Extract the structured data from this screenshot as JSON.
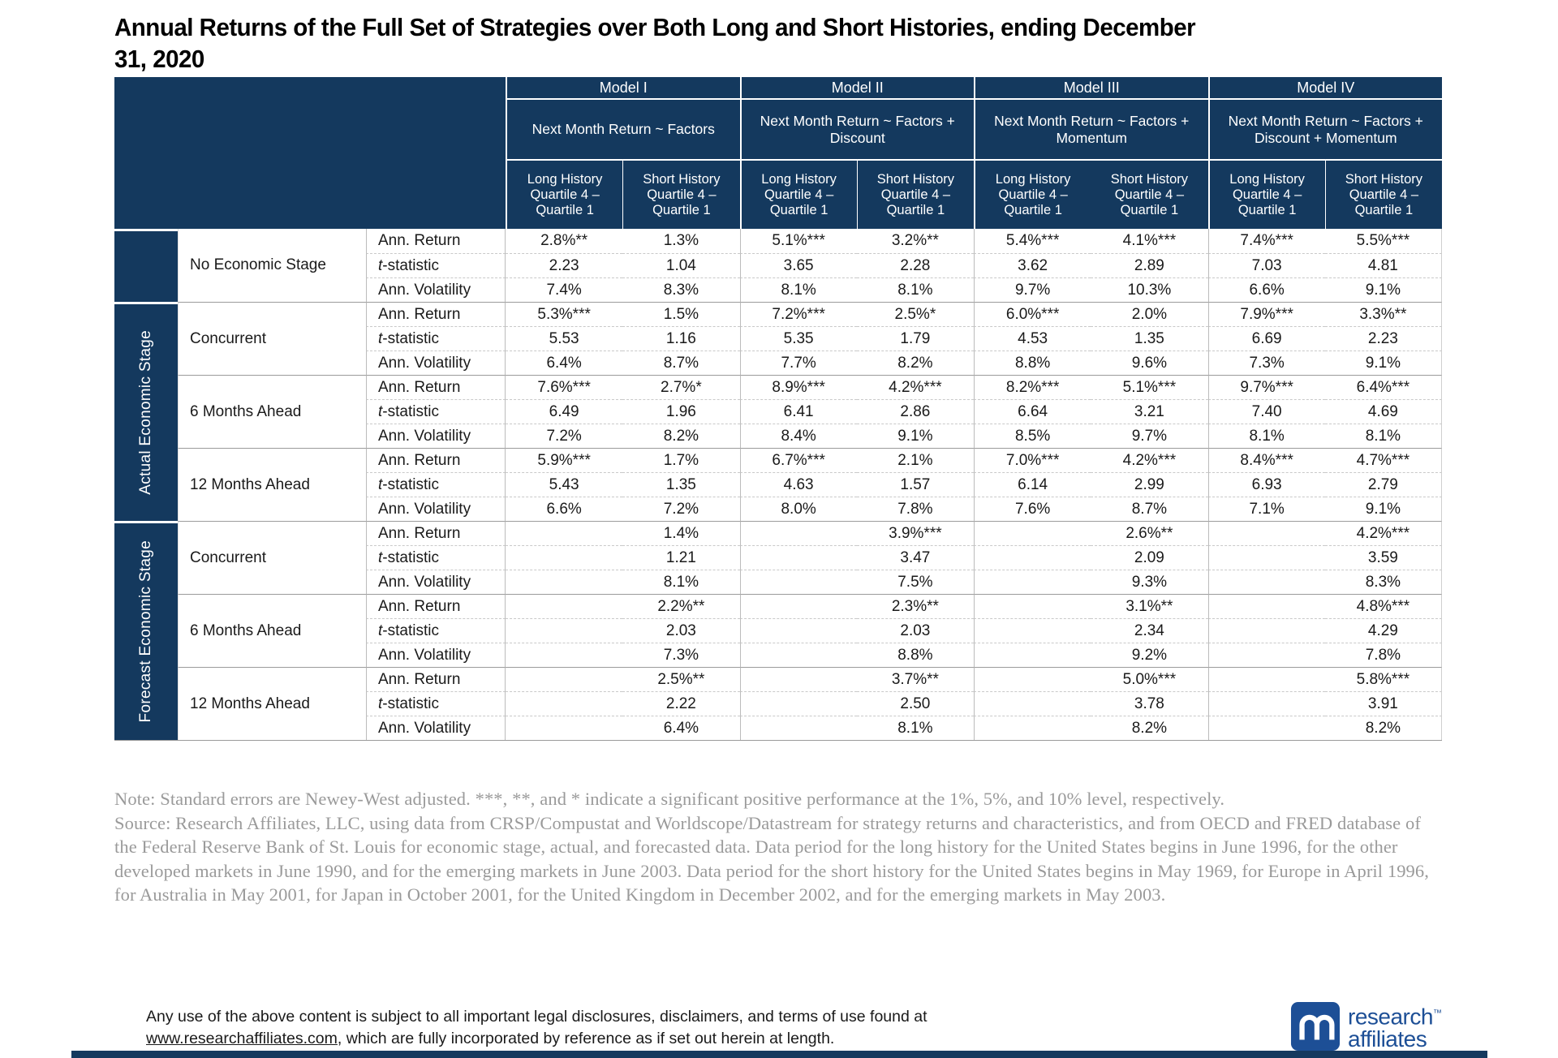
{
  "title": "Annual Returns of the Full Set of Strategies over Both Long and Short Histories, ending December 31, 2020",
  "chart_data": {
    "type": "table",
    "title": "Annual Returns of the Full Set of Strategies over Both Long and Short Histories, ending December 31, 2020",
    "models": [
      {
        "name": "Model I",
        "formula": "Next Month Return ~ Factors"
      },
      {
        "name": "Model II",
        "formula": "Next Month Return ~ Factors + Discount"
      },
      {
        "name": "Model III",
        "formula": "Next Month Return ~ Factors + Momentum"
      },
      {
        "name": "Model IV",
        "formula": "Next Month Return ~ Factors + Discount + Momentum"
      }
    ],
    "history_headers": [
      "Long History",
      "Short History"
    ],
    "quartile_lines": [
      "Quartile 4 –",
      "Quartile 1"
    ],
    "sections": [
      {
        "band": "",
        "groups": [
          {
            "label": "No Economic Stage",
            "rows": [
              {
                "metric": "Ann. Return",
                "values": [
                  "2.8%**",
                  "1.3%",
                  "5.1%***",
                  "3.2%**",
                  "5.4%***",
                  "4.1%***",
                  "7.4%***",
                  "5.5%***"
                ]
              },
              {
                "metric": "t-statistic",
                "values": [
                  "2.23",
                  "1.04",
                  "3.65",
                  "2.28",
                  "3.62",
                  "2.89",
                  "7.03",
                  "4.81"
                ]
              },
              {
                "metric": "Ann. Volatility",
                "values": [
                  "7.4%",
                  "8.3%",
                  "8.1%",
                  "8.1%",
                  "9.7%",
                  "10.3%",
                  "6.6%",
                  "9.1%"
                ]
              }
            ]
          }
        ]
      },
      {
        "band": "Actual Economic Stage",
        "groups": [
          {
            "label": "Concurrent",
            "rows": [
              {
                "metric": "Ann. Return",
                "values": [
                  "5.3%***",
                  "1.5%",
                  "7.2%***",
                  "2.5%*",
                  "6.0%***",
                  "2.0%",
                  "7.9%***",
                  "3.3%**"
                ]
              },
              {
                "metric": "t-statistic",
                "values": [
                  "5.53",
                  "1.16",
                  "5.35",
                  "1.79",
                  "4.53",
                  "1.35",
                  "6.69",
                  "2.23"
                ]
              },
              {
                "metric": "Ann. Volatility",
                "values": [
                  "6.4%",
                  "8.7%",
                  "7.7%",
                  "8.2%",
                  "8.8%",
                  "9.6%",
                  "7.3%",
                  "9.1%"
                ]
              }
            ]
          },
          {
            "label": "6 Months Ahead",
            "rows": [
              {
                "metric": "Ann. Return",
                "values": [
                  "7.6%***",
                  "2.7%*",
                  "8.9%***",
                  "4.2%***",
                  "8.2%***",
                  "5.1%***",
                  "9.7%***",
                  "6.4%***"
                ]
              },
              {
                "metric": "t-statistic",
                "values": [
                  "6.49",
                  "1.96",
                  "6.41",
                  "2.86",
                  "6.64",
                  "3.21",
                  "7.40",
                  "4.69"
                ]
              },
              {
                "metric": "Ann. Volatility",
                "values": [
                  "7.2%",
                  "8.2%",
                  "8.4%",
                  "9.1%",
                  "8.5%",
                  "9.7%",
                  "8.1%",
                  "8.1%"
                ]
              }
            ]
          },
          {
            "label": "12 Months Ahead",
            "rows": [
              {
                "metric": "Ann. Return",
                "values": [
                  "5.9%***",
                  "1.7%",
                  "6.7%***",
                  "2.1%",
                  "7.0%***",
                  "4.2%***",
                  "8.4%***",
                  "4.7%***"
                ]
              },
              {
                "metric": "t-statistic",
                "values": [
                  "5.43",
                  "1.35",
                  "4.63",
                  "1.57",
                  "6.14",
                  "2.99",
                  "6.93",
                  "2.79"
                ]
              },
              {
                "metric": "Ann. Volatility",
                "values": [
                  "6.6%",
                  "7.2%",
                  "8.0%",
                  "7.8%",
                  "7.6%",
                  "8.7%",
                  "7.1%",
                  "9.1%"
                ]
              }
            ]
          }
        ]
      },
      {
        "band": "Forecast Economic Stage",
        "groups": [
          {
            "label": "Concurrent",
            "rows": [
              {
                "metric": "Ann. Return",
                "values": [
                  "",
                  "1.4%",
                  "",
                  "3.9%***",
                  "",
                  "2.6%**",
                  "",
                  "4.2%***"
                ]
              },
              {
                "metric": "t-statistic",
                "values": [
                  "",
                  "1.21",
                  "",
                  "3.47",
                  "",
                  "2.09",
                  "",
                  "3.59"
                ]
              },
              {
                "metric": "Ann. Volatility",
                "values": [
                  "",
                  "8.1%",
                  "",
                  "7.5%",
                  "",
                  "9.3%",
                  "",
                  "8.3%"
                ]
              }
            ]
          },
          {
            "label": "6 Months Ahead",
            "rows": [
              {
                "metric": "Ann. Return",
                "values": [
                  "",
                  "2.2%**",
                  "",
                  "2.3%**",
                  "",
                  "3.1%**",
                  "",
                  "4.8%***"
                ]
              },
              {
                "metric": "t-statistic",
                "values": [
                  "",
                  "2.03",
                  "",
                  "2.03",
                  "",
                  "2.34",
                  "",
                  "4.29"
                ]
              },
              {
                "metric": "Ann. Volatility",
                "values": [
                  "",
                  "7.3%",
                  "",
                  "8.8%",
                  "",
                  "9.2%",
                  "",
                  "7.8%"
                ]
              }
            ]
          },
          {
            "label": "12 Months Ahead",
            "rows": [
              {
                "metric": "Ann. Return",
                "values": [
                  "",
                  "2.5%**",
                  "",
                  "3.7%**",
                  "",
                  "5.0%***",
                  "",
                  "5.8%***"
                ]
              },
              {
                "metric": "t-statistic",
                "values": [
                  "",
                  "2.22",
                  "",
                  "2.50",
                  "",
                  "3.78",
                  "",
                  "3.91"
                ]
              },
              {
                "metric": "Ann. Volatility",
                "values": [
                  "",
                  "6.4%",
                  "",
                  "8.1%",
                  "",
                  "8.2%",
                  "",
                  "8.2%"
                ]
              }
            ]
          }
        ]
      }
    ]
  },
  "notes": {
    "note": "Note: Standard errors are Newey-West adjusted. ***, **, and * indicate a significant positive performance at the 1%, 5%, and 10% level, respectively.",
    "source": "Source: Research Affiliates, LLC, using data from CRSP/Compustat and Worldscope/Datastream for strategy returns and characteristics, and from OECD and FRED database of the Federal Reserve Bank of St. Louis for economic stage, actual, and forecasted data. Data period for the long history for the United States begins in June 1996, for the other developed markets in June 1990, and for the emerging markets in June 2003. Data period for the short history for the United States begins in May 1969, for Europe in April 1996, for Australia in May 2001, for Japan in October 2001, for the United Kingdom in December 2002, and for the emerging markets in May 2003."
  },
  "footer": {
    "pre": "Any use of the above content is subject to all important legal disclosures, disclaimers, and terms of use found at ",
    "link": "www.researchaffiliates.com",
    "post": ", which are fully incorporated by reference as if set out herein at length."
  },
  "logo": {
    "word1": "research",
    "tm": "™",
    "word2": "affiliates"
  },
  "colors": {
    "navy": "#14395E",
    "logo_blue": "#1D4F96",
    "note_gray": "#9A9A9A"
  }
}
